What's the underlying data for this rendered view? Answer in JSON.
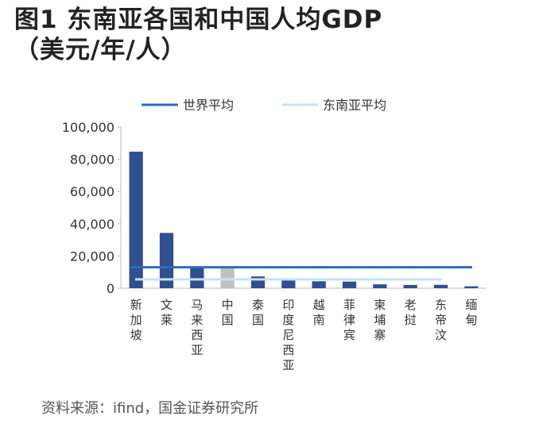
{
  "header": {
    "title_line1": "图1  东南亚各国和中国人均GDP",
    "title_line2": "（美元/年/人）"
  },
  "footer": {
    "source": "资料来源：ifind，国金证券研究所"
  },
  "colors": {
    "bar": "#2f4f8f",
    "bar_highlight": "#c0c0c0",
    "world_avg": "#2e6db5",
    "sea_avg": "#c7e3f6",
    "axis": "#bdbdbd"
  },
  "chart_data": {
    "type": "bar",
    "title": "东南亚各国和中国人均GDP（美元/年/人）",
    "xlabel": "",
    "ylabel": "",
    "ylim": [
      0,
      100000
    ],
    "yticks": [
      0,
      20000,
      40000,
      60000,
      80000,
      100000
    ],
    "ytick_labels": [
      "0",
      "20,000",
      "40,000",
      "60,000",
      "80,000",
      "100,000"
    ],
    "categories": [
      "新加坡",
      "文莱",
      "马来西亚",
      "中国",
      "泰国",
      "印度尼西亚",
      "越南",
      "菲律宾",
      "柬埔寨",
      "老挝",
      "东帝汶",
      "缅甸"
    ],
    "values": [
      84700,
      34300,
      13100,
      12700,
      7300,
      4900,
      4300,
      4100,
      2400,
      2000,
      2100,
      1200
    ],
    "highlight_category": "中国",
    "reference_lines": [
      {
        "name": "世界平均",
        "value": 13000
      },
      {
        "name": "东南亚平均",
        "value": 5500
      }
    ],
    "legend": [
      "世界平均",
      "东南亚平均"
    ],
    "legend_position": "top"
  }
}
